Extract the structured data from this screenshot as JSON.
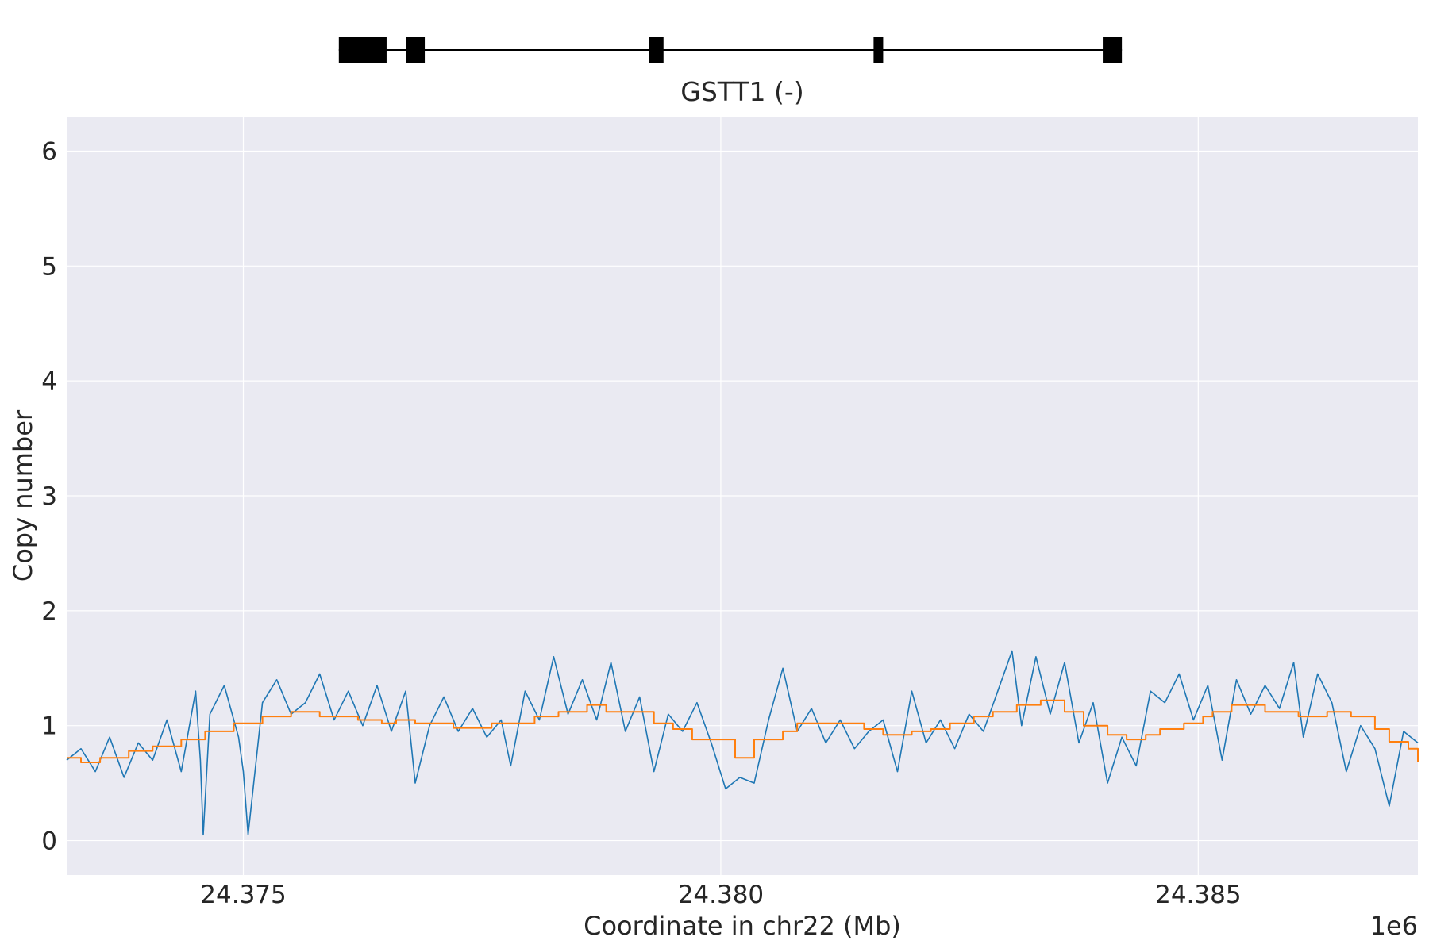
{
  "chart_data": {
    "type": "line",
    "gene": {
      "label": "GSTT1 (-)",
      "strand": "-",
      "start": 24376.0,
      "end": 24384.2,
      "exons": [
        [
          24376.0,
          24376.5
        ],
        [
          24376.7,
          24376.9
        ],
        [
          24379.25,
          24379.4
        ],
        [
          24381.6,
          24381.7
        ],
        [
          24384.0,
          24384.2
        ]
      ]
    },
    "xlabel": "Coordinate in chr22 (Mb)",
    "ylabel": "Copy number",
    "x_offset_label": "1e6",
    "xlim": [
      24373.15,
      24387.3
    ],
    "ylim": [
      -0.3,
      6.3
    ],
    "x_ticks": [
      {
        "value": 24375.0,
        "label": "24.375"
      },
      {
        "value": 24380.0,
        "label": "24.380"
      },
      {
        "value": 24385.0,
        "label": "24.385"
      }
    ],
    "y_ticks": [
      {
        "value": 0,
        "label": "0"
      },
      {
        "value": 1,
        "label": "1"
      },
      {
        "value": 2,
        "label": "2"
      },
      {
        "value": 3,
        "label": "3"
      },
      {
        "value": 4,
        "label": "4"
      },
      {
        "value": 5,
        "label": "5"
      },
      {
        "value": 6,
        "label": "6"
      }
    ],
    "grid": true,
    "series": [
      {
        "color": "#1f77b4",
        "x": [
          24373.15,
          24373.3,
          24373.45,
          24373.6,
          24373.75,
          24373.9,
          24374.05,
          24374.2,
          24374.35,
          24374.5,
          24374.55,
          24374.58,
          24374.65,
          24374.8,
          24374.95,
          24375.0,
          24375.05,
          24375.2,
          24375.35,
          24375.5,
          24375.65,
          24375.8,
          24375.95,
          24376.1,
          24376.25,
          24376.4,
          24376.55,
          24376.7,
          24376.8,
          24376.95,
          24377.1,
          24377.25,
          24377.4,
          24377.55,
          24377.7,
          24377.8,
          24377.95,
          24378.1,
          24378.25,
          24378.4,
          24378.55,
          24378.7,
          24378.85,
          24379.0,
          24379.15,
          24379.3,
          24379.45,
          24379.6,
          24379.75,
          24379.9,
          24380.05,
          24380.2,
          24380.35,
          24380.5,
          24380.65,
          24380.8,
          24380.95,
          24381.1,
          24381.25,
          24381.4,
          24381.55,
          24381.7,
          24381.85,
          24382.0,
          24382.15,
          24382.3,
          24382.45,
          24382.6,
          24382.75,
          24382.9,
          24383.05,
          24383.15,
          24383.3,
          24383.45,
          24383.6,
          24383.75,
          24383.9,
          24384.05,
          24384.2,
          24384.35,
          24384.5,
          24384.65,
          24384.8,
          24384.95,
          24385.1,
          24385.25,
          24385.4,
          24385.55,
          24385.7,
          24385.85,
          24386.0,
          24386.1,
          24386.25,
          24386.4,
          24386.55,
          24386.7,
          24386.85,
          24387.0,
          24387.15,
          24387.3
        ],
        "y": [
          0.7,
          0.8,
          0.6,
          0.9,
          0.55,
          0.85,
          0.7,
          1.05,
          0.6,
          1.3,
          0.7,
          0.05,
          1.1,
          1.35,
          0.9,
          0.6,
          0.05,
          1.2,
          1.4,
          1.1,
          1.2,
          1.45,
          1.05,
          1.3,
          1.0,
          1.35,
          0.95,
          1.3,
          0.5,
          1.0,
          1.25,
          0.95,
          1.15,
          0.9,
          1.05,
          0.65,
          1.3,
          1.05,
          1.6,
          1.1,
          1.4,
          1.05,
          1.55,
          0.95,
          1.25,
          0.6,
          1.1,
          0.95,
          1.2,
          0.85,
          0.45,
          0.55,
          0.5,
          1.05,
          1.5,
          0.95,
          1.15,
          0.85,
          1.05,
          0.8,
          0.95,
          1.05,
          0.6,
          1.3,
          0.85,
          1.05,
          0.8,
          1.1,
          0.95,
          1.3,
          1.65,
          1.0,
          1.6,
          1.1,
          1.55,
          0.85,
          1.2,
          0.5,
          0.9,
          0.65,
          1.3,
          1.2,
          1.45,
          1.05,
          1.35,
          0.7,
          1.4,
          1.1,
          1.35,
          1.15,
          1.55,
          0.9,
          1.45,
          1.2,
          0.6,
          1.0,
          0.8,
          0.3,
          0.95,
          0.85
        ]
      },
      {
        "color": "#ff7f0e",
        "step": true,
        "x": [
          24373.15,
          24373.3,
          24373.5,
          24373.8,
          24374.05,
          24374.35,
          24374.6,
          24374.9,
          24375.2,
          24375.5,
          24375.8,
          24376.2,
          24376.45,
          24376.6,
          24376.8,
          24377.2,
          24377.6,
          24378.05,
          24378.3,
          24378.6,
          24378.8,
          24379.3,
          24379.5,
          24379.7,
          24380.15,
          24380.35,
          24380.65,
          24380.8,
          24381.5,
          24381.7,
          24382.0,
          24382.2,
          24382.4,
          24382.65,
          24382.85,
          24383.1,
          24383.35,
          24383.6,
          24383.8,
          24384.05,
          24384.25,
          24384.45,
          24384.6,
          24384.85,
          24385.05,
          24385.15,
          24385.35,
          24385.7,
          24386.05,
          24386.35,
          24386.6,
          24386.85,
          24387.0,
          24387.2,
          24387.3
        ],
        "y": [
          0.72,
          0.68,
          0.72,
          0.78,
          0.82,
          0.88,
          0.95,
          1.02,
          1.08,
          1.12,
          1.08,
          1.05,
          1.02,
          1.05,
          1.02,
          0.98,
          1.02,
          1.08,
          1.12,
          1.18,
          1.12,
          1.02,
          0.97,
          0.88,
          0.72,
          0.88,
          0.95,
          1.02,
          0.97,
          0.92,
          0.95,
          0.97,
          1.02,
          1.08,
          1.12,
          1.18,
          1.22,
          1.12,
          1.0,
          0.92,
          0.88,
          0.92,
          0.97,
          1.02,
          1.08,
          1.12,
          1.18,
          1.12,
          1.08,
          1.12,
          1.08,
          0.97,
          0.86,
          0.8,
          0.68
        ]
      }
    ]
  }
}
